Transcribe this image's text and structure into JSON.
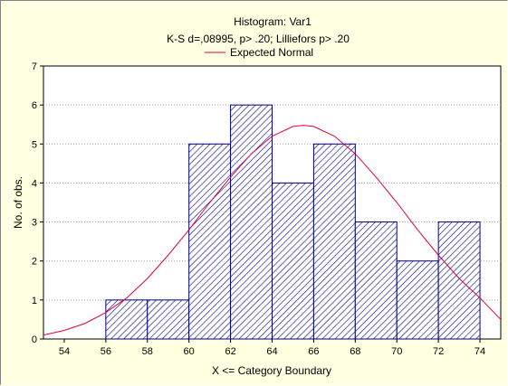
{
  "chart_data": {
    "type": "bar",
    "title": "Histogram: Var1",
    "subtitle": "K-S d=,08995, p> .20; Lilliefors p> .20",
    "legend": {
      "label": "Expected Normal",
      "position": "top-center"
    },
    "xlabel": "X <= Category Boundary",
    "ylabel": "No. of obs.",
    "xlim": [
      53,
      75
    ],
    "ylim": [
      0,
      7
    ],
    "xticks": [
      "54",
      "56",
      "58",
      "60",
      "62",
      "64",
      "66",
      "68",
      "70",
      "72",
      "74"
    ],
    "yticks": [
      "0",
      "1",
      "2",
      "3",
      "4",
      "5",
      "6",
      "7"
    ],
    "grid": "horizontal dotted",
    "bins": [
      {
        "from": 56,
        "to": 58,
        "count": 1
      },
      {
        "from": 58,
        "to": 60,
        "count": 1
      },
      {
        "from": 60,
        "to": 62,
        "count": 5
      },
      {
        "from": 62,
        "to": 64,
        "count": 6
      },
      {
        "from": 64,
        "to": 66,
        "count": 4
      },
      {
        "from": 66,
        "to": 68,
        "count": 5
      },
      {
        "from": 68,
        "to": 70,
        "count": 3
      },
      {
        "from": 70,
        "to": 72,
        "count": 2
      },
      {
        "from": 72,
        "to": 74,
        "count": 3
      }
    ],
    "expected_normal": {
      "x": [
        53,
        54,
        55,
        56,
        57,
        58,
        59,
        60,
        61,
        62,
        63,
        64,
        65,
        65.5,
        66,
        67,
        68,
        69,
        70,
        71,
        72,
        73,
        74,
        75
      ],
      "y": [
        0.1,
        0.22,
        0.4,
        0.68,
        1.05,
        1.55,
        2.15,
        2.8,
        3.5,
        4.15,
        4.75,
        5.2,
        5.45,
        5.48,
        5.45,
        5.2,
        4.75,
        4.15,
        3.5,
        2.8,
        2.15,
        1.55,
        1.05,
        0.5
      ]
    },
    "colors": {
      "bar_fill": "#ffffff",
      "bar_hatch": "#000080",
      "bar_edge": "#000080",
      "curve": "#e0003c",
      "background": "#ffffe1",
      "plot_area": "#ffffff"
    }
  }
}
